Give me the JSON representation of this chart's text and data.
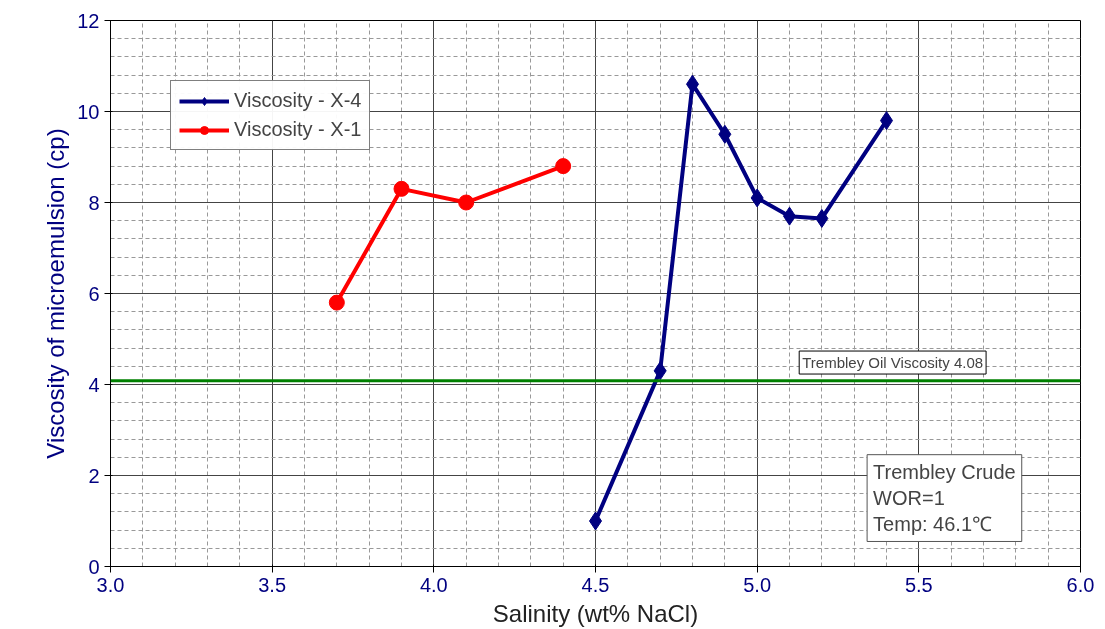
{
  "chart_data": {
    "type": "line",
    "xlabel": "Salinity (wt% NaCl)",
    "ylabel": "Viscosity of microemulsion (cp)",
    "xlim": [
      3.0,
      6.0
    ],
    "xticks": [
      {
        "value": 3.0,
        "label": "3.0"
      },
      {
        "value": 3.5,
        "label": "3.5"
      },
      {
        "value": 4.0,
        "label": "4.0"
      },
      {
        "value": 4.5,
        "label": "4.5"
      },
      {
        "value": 5.0,
        "label": "5.0"
      },
      {
        "value": 5.5,
        "label": "5.5"
      },
      {
        "value": 6.0,
        "label": "6.0"
      }
    ],
    "ylim": [
      0,
      12
    ],
    "yticks": [
      0,
      2,
      4,
      6,
      8,
      10,
      12
    ],
    "grid": true,
    "legend": "top left",
    "series": [
      {
        "name": "Viscosity - X-4",
        "color": "#000080",
        "marker": "diamond",
        "x": [
          4.5,
          4.7,
          4.8,
          4.9,
          5.0,
          5.1,
          5.2,
          5.4
        ],
        "values": [
          1.0,
          4.3,
          10.6,
          9.5,
          8.1,
          7.7,
          7.65,
          9.8
        ]
      },
      {
        "name": "Viscosity - X-1",
        "color": "#ff0000",
        "marker": "circle",
        "x": [
          3.7,
          3.9,
          4.1,
          4.4
        ],
        "values": [
          5.8,
          8.3,
          8.0,
          8.8
        ]
      }
    ],
    "ref_lines": [
      {
        "axis": "y",
        "value": 4.08,
        "label": "Trembley Oil Viscosity 4.08",
        "color": "#008000"
      }
    ],
    "annotations": [
      "Trembley Crude\nWOR=1\nTemp: 46.1℃"
    ]
  }
}
